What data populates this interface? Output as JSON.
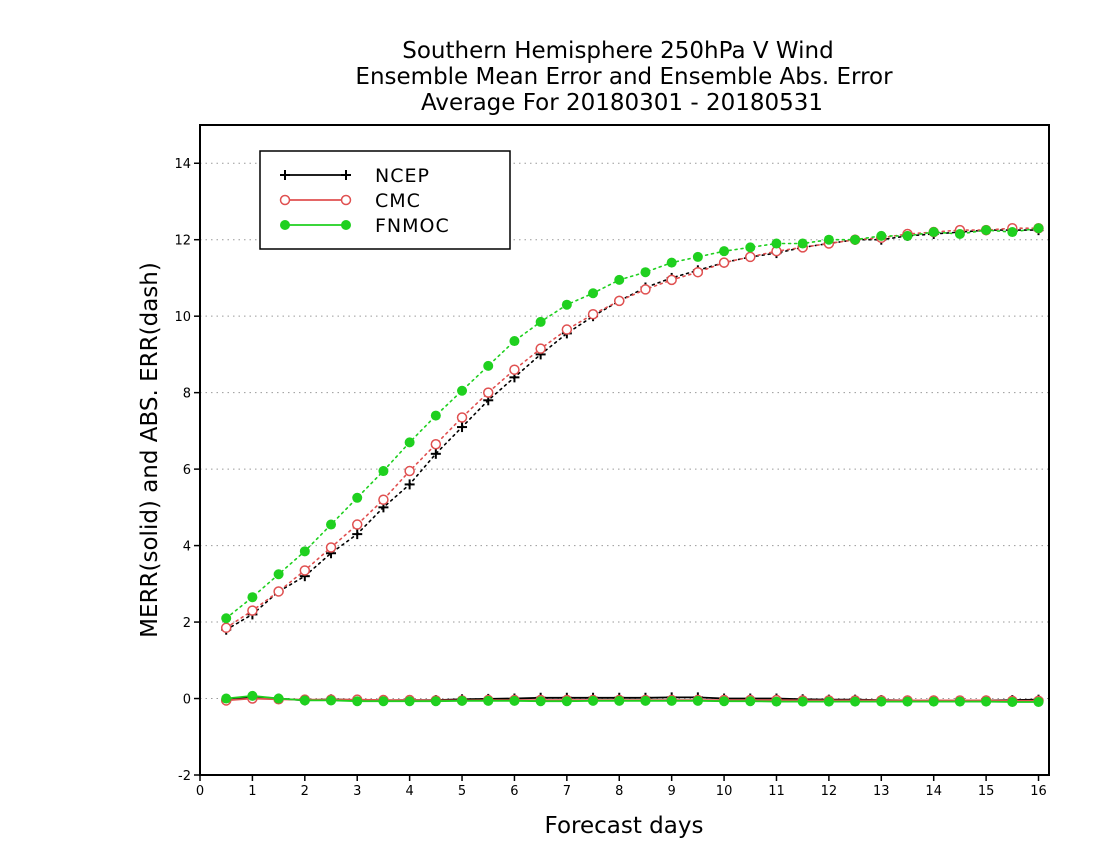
{
  "chart_data": {
    "type": "line",
    "title": [
      "Southern Hemisphere 250hPa V Wind",
      "Ensemble Mean Error and Ensemble Abs. Error",
      "Average For 20180301 - 20180531"
    ],
    "xlabel": "Forecast days",
    "ylabel": "MERR(solid) and ABS. ERR(dash)",
    "xlim": [
      0,
      16.2
    ],
    "ylim": [
      -2,
      15
    ],
    "xticks": [
      "0",
      "1",
      "2",
      "3",
      "4",
      "5",
      "6",
      "7",
      "8",
      "9",
      "10",
      "11",
      "12",
      "13",
      "14",
      "15",
      "16"
    ],
    "yticks": [
      "-2",
      "0",
      "2",
      "4",
      "6",
      "8",
      "10",
      "12",
      "14"
    ],
    "grid": "horizontal dotted",
    "legend_position": "top-left",
    "x": [
      0.5,
      1,
      1.5,
      2,
      2.5,
      3,
      3.5,
      4,
      4.5,
      5,
      5.5,
      6,
      6.5,
      7,
      7.5,
      8,
      8.5,
      9,
      9.5,
      10,
      10.5,
      11,
      11.5,
      12,
      12.5,
      13,
      13.5,
      14,
      14.5,
      15,
      15.5,
      16
    ],
    "series": [
      {
        "name": "NCEP",
        "color": "#000000",
        "marker": "plus",
        "abs_err": [
          1.8,
          2.2,
          2.8,
          3.2,
          3.8,
          4.3,
          5.0,
          5.6,
          6.4,
          7.1,
          7.8,
          8.4,
          9.0,
          9.55,
          10.0,
          10.4,
          10.75,
          11.0,
          11.2,
          11.4,
          11.55,
          11.65,
          11.8,
          11.9,
          12.0,
          12.0,
          12.1,
          12.15,
          12.2,
          12.25,
          12.25,
          12.25
        ],
        "mean_err": [
          -0.05,
          0.05,
          0.0,
          -0.05,
          -0.02,
          -0.04,
          -0.05,
          -0.04,
          -0.04,
          -0.02,
          -0.01,
          0.0,
          0.02,
          0.02,
          0.02,
          0.02,
          0.02,
          0.03,
          0.03,
          0.0,
          0.0,
          0.0,
          -0.02,
          -0.03,
          -0.03,
          -0.04,
          -0.05,
          -0.05,
          -0.06,
          -0.05,
          -0.04,
          -0.03
        ]
      },
      {
        "name": "CMC",
        "color": "#e05050",
        "marker": "circle-open",
        "abs_err": [
          1.85,
          2.3,
          2.8,
          3.35,
          3.95,
          4.55,
          5.2,
          5.95,
          6.65,
          7.35,
          8.0,
          8.6,
          9.15,
          9.65,
          10.05,
          10.4,
          10.7,
          10.95,
          11.15,
          11.4,
          11.55,
          11.7,
          11.8,
          11.9,
          12.0,
          12.05,
          12.15,
          12.2,
          12.25,
          12.25,
          12.3,
          12.3
        ],
        "mean_err": [
          -0.05,
          0.0,
          -0.02,
          -0.03,
          -0.03,
          -0.03,
          -0.04,
          -0.04,
          -0.05,
          -0.05,
          -0.04,
          -0.04,
          -0.04,
          -0.04,
          -0.04,
          -0.04,
          -0.04,
          -0.04,
          -0.04,
          -0.04,
          -0.04,
          -0.04,
          -0.05,
          -0.05,
          -0.05,
          -0.05,
          -0.05,
          -0.05,
          -0.05,
          -0.05,
          -0.06,
          -0.06
        ]
      },
      {
        "name": "FNMOC",
        "color": "#1fd01f",
        "marker": "circle-filled",
        "abs_err": [
          2.1,
          2.65,
          3.25,
          3.85,
          4.55,
          5.25,
          5.95,
          6.7,
          7.4,
          8.05,
          8.7,
          9.35,
          9.85,
          10.3,
          10.6,
          10.95,
          11.15,
          11.4,
          11.55,
          11.7,
          11.8,
          11.9,
          11.9,
          12.0,
          12.0,
          12.1,
          12.1,
          12.2,
          12.15,
          12.25,
          12.2,
          12.3
        ],
        "mean_err": [
          0.0,
          0.07,
          0.0,
          -0.05,
          -0.05,
          -0.07,
          -0.07,
          -0.07,
          -0.07,
          -0.06,
          -0.06,
          -0.06,
          -0.07,
          -0.07,
          -0.06,
          -0.06,
          -0.06,
          -0.06,
          -0.06,
          -0.07,
          -0.07,
          -0.08,
          -0.08,
          -0.08,
          -0.08,
          -0.08,
          -0.08,
          -0.08,
          -0.08,
          -0.08,
          -0.09,
          -0.09
        ]
      }
    ]
  }
}
